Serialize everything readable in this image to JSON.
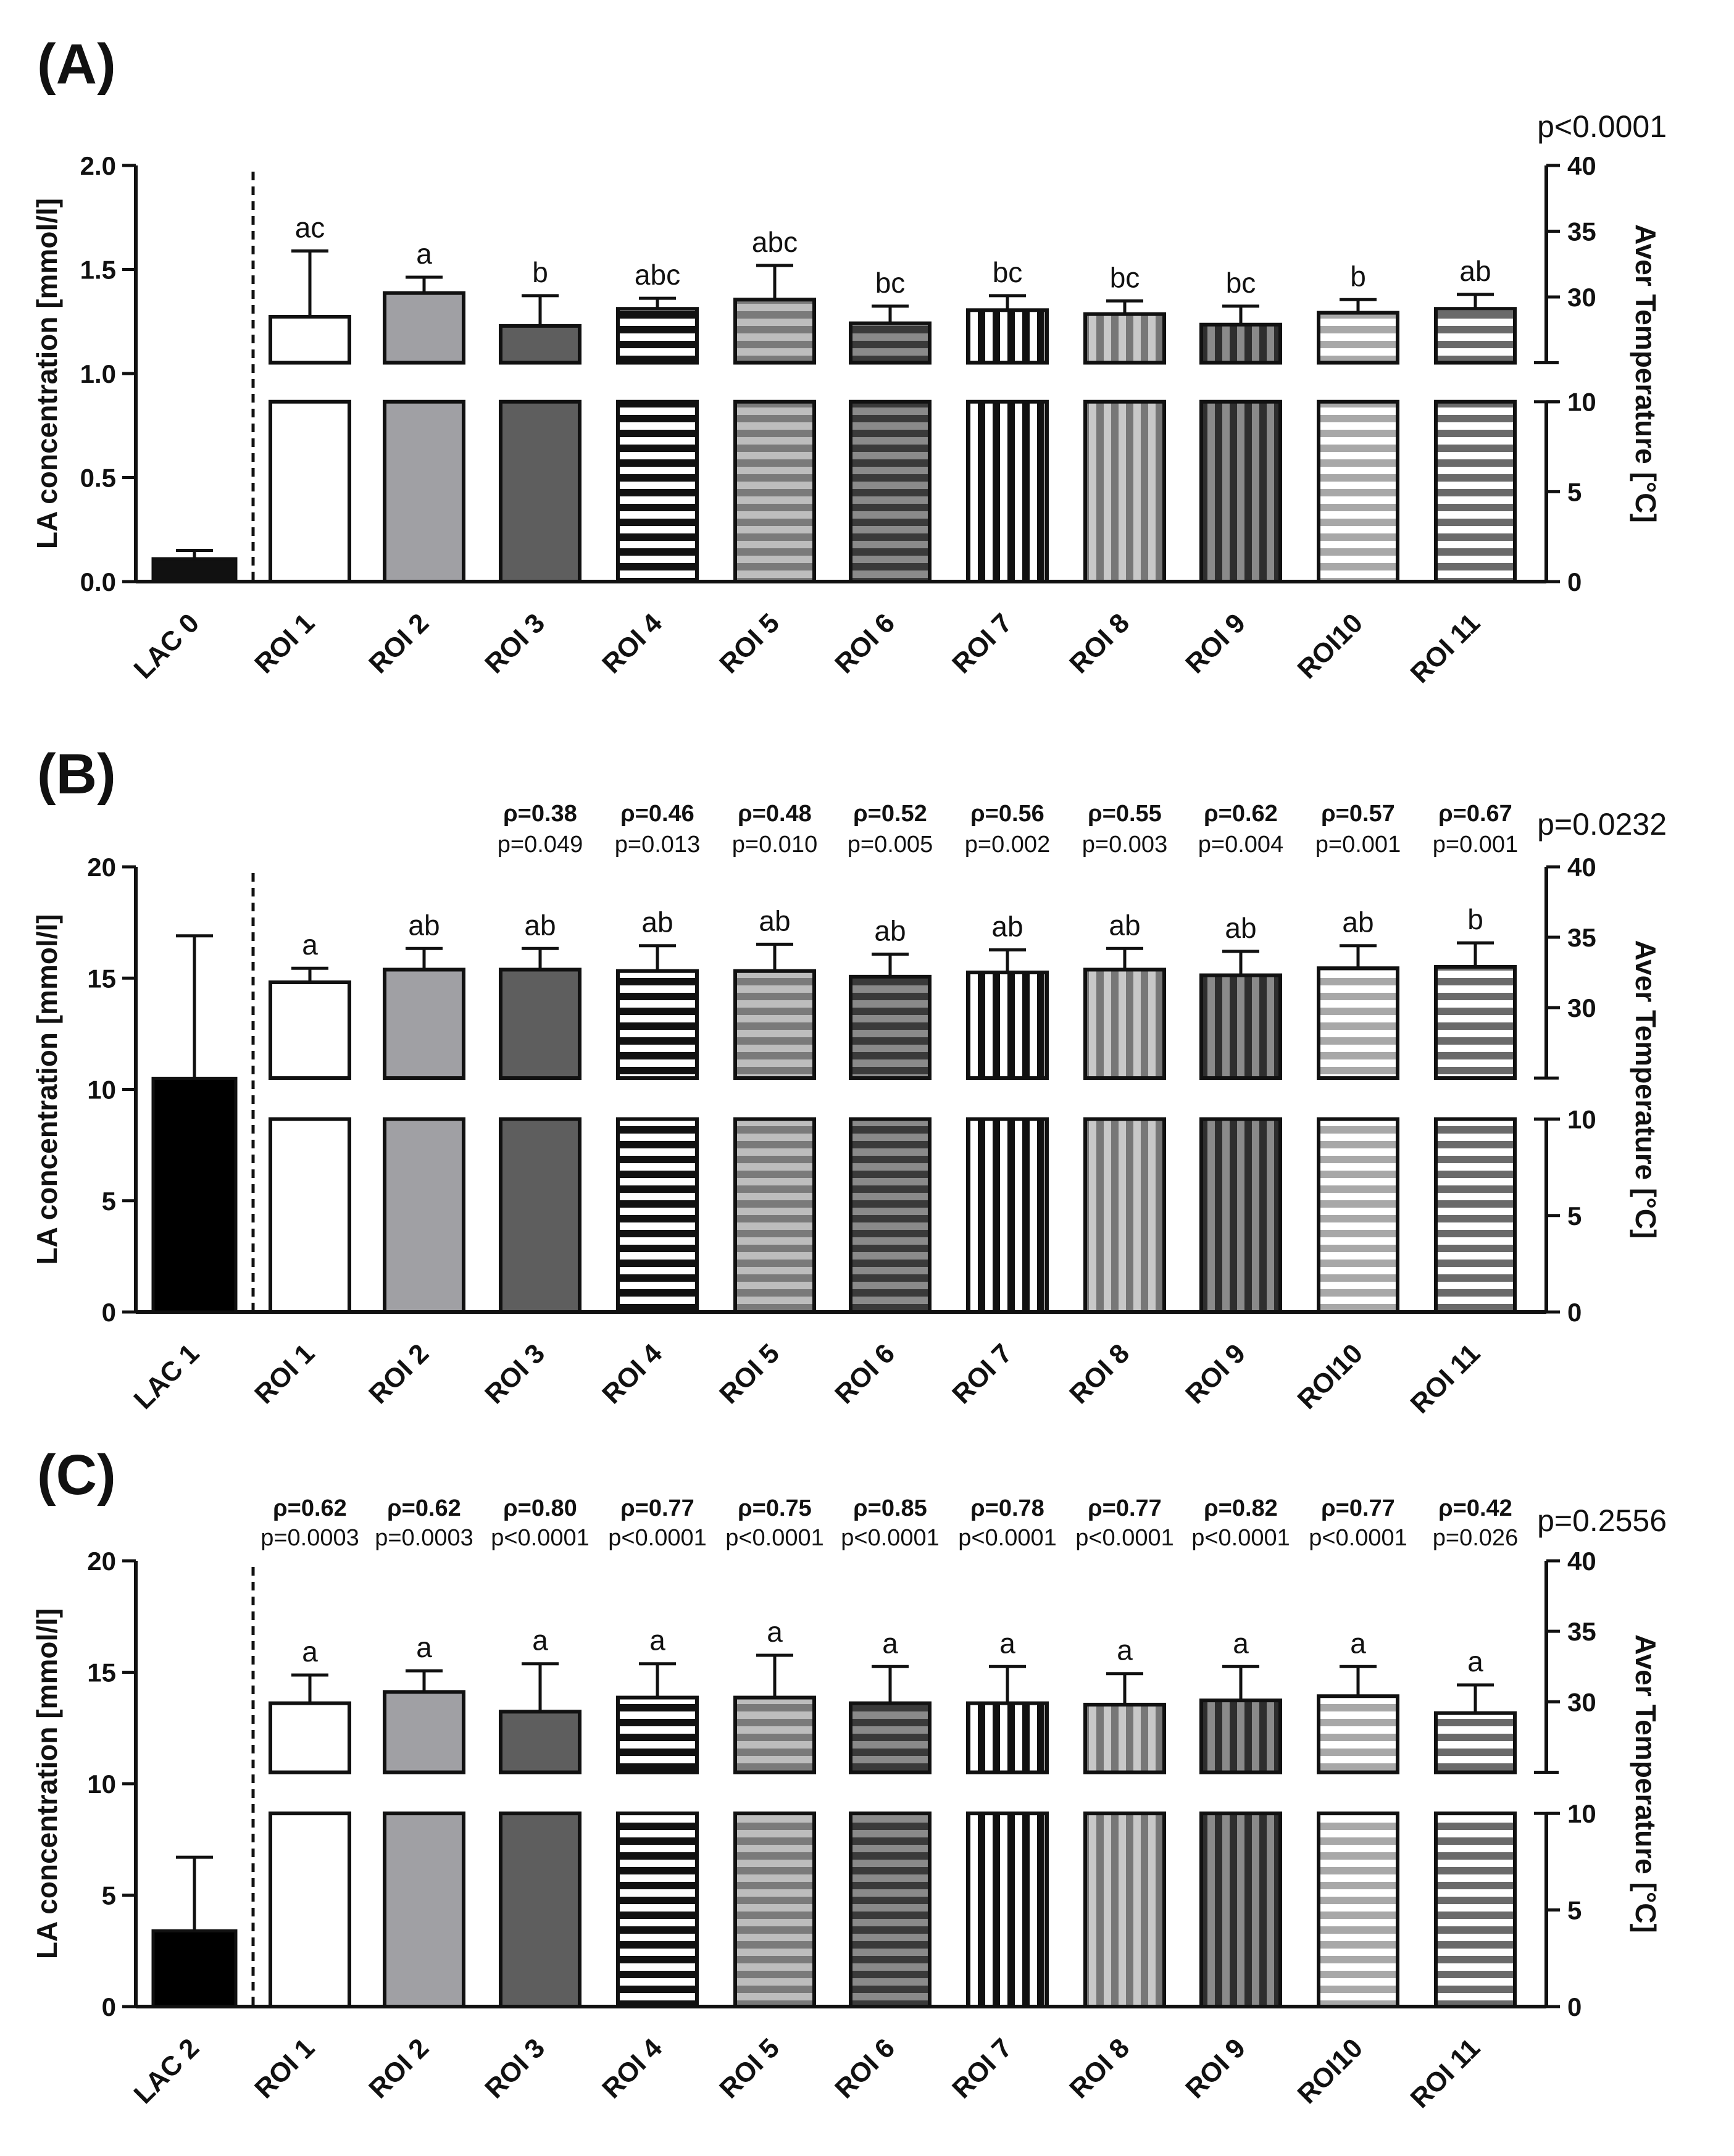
{
  "chart_data": [
    {
      "type": "bar",
      "panel": "(A)",
      "ylabel_left": "LA concentration [mmol/l]",
      "ylabel_right": "Aver Temperature [°C]",
      "left_axis": {
        "ylim": [
          0,
          2.0
        ],
        "ticks": [
          "0.0",
          "0.5",
          "1.0",
          "1.5",
          "2.0"
        ],
        "step": 0.5
      },
      "right_axis": {
        "break": true,
        "lower": [
          0,
          10
        ],
        "upper": [
          25,
          40
        ],
        "ticks": [
          "0",
          "5",
          "10",
          "30",
          "35",
          "40"
        ]
      },
      "p_overall": "p<0.0001",
      "lac": {
        "label": "LAC 0",
        "value": 0.11,
        "error": 0.04
      },
      "categories": [
        "ROI 1",
        "ROI 2",
        "ROI 3",
        "ROI 4",
        "ROI 5",
        "ROI 6",
        "ROI 7",
        "ROI 8",
        "ROI 9",
        "ROI10",
        "ROI 11"
      ],
      "values": [
        28.5,
        30.3,
        27.8,
        29.1,
        29.8,
        28.0,
        29.0,
        28.7,
        27.9,
        28.8,
        29.1
      ],
      "errors": [
        5.0,
        1.2,
        2.3,
        0.8,
        2.6,
        1.3,
        1.1,
        1.0,
        1.4,
        1.0,
        1.1
      ],
      "significance": [
        "ac",
        "a",
        "b",
        "abc",
        "abc",
        "bc",
        "bc",
        "bc",
        "bc",
        "b",
        "ab"
      ],
      "rho": [],
      "pvals": []
    },
    {
      "type": "bar",
      "panel": "(B)",
      "ylabel_left": "LA concentration [mmol/l]",
      "ylabel_right": "Aver Temperature [°C]",
      "left_axis": {
        "ylim": [
          0,
          20
        ],
        "ticks": [
          "0",
          "5",
          "10",
          "15",
          "20"
        ],
        "step": 5
      },
      "right_axis": {
        "break": true,
        "lower": [
          0,
          10
        ],
        "upper": [
          25,
          40
        ],
        "ticks": [
          "0",
          "5",
          "10",
          "30",
          "35",
          "40"
        ]
      },
      "p_overall": "p=0.0232",
      "lac": {
        "label": "LAC 1",
        "value": 10.5,
        "error": 6.4
      },
      "categories": [
        "ROI 1",
        "ROI 2",
        "ROI 3",
        "ROI 4",
        "ROI 5",
        "ROI 6",
        "ROI 7",
        "ROI 8",
        "ROI 9",
        "ROI10",
        "ROI 11"
      ],
      "values": [
        31.8,
        32.7,
        32.7,
        32.6,
        32.6,
        32.2,
        32.5,
        32.7,
        32.3,
        32.8,
        32.9
      ],
      "errors": [
        1.0,
        1.5,
        1.5,
        1.8,
        1.9,
        1.6,
        1.6,
        1.5,
        1.7,
        1.6,
        1.7
      ],
      "significance": [
        "a",
        "ab",
        "ab",
        "ab",
        "ab",
        "ab",
        "ab",
        "ab",
        "ab",
        "ab",
        "b"
      ],
      "rho": [
        "",
        "",
        "ρ=0.38",
        "ρ=0.46",
        "ρ=0.48",
        "ρ=0.52",
        "ρ=0.56",
        "ρ=0.55",
        "ρ=0.62",
        "ρ=0.57",
        "ρ=0.67"
      ],
      "pvals": [
        "",
        "",
        "p=0.049",
        "p=0.013",
        "p=0.010",
        "p=0.005",
        "p=0.002",
        "p=0.003",
        "p=0.004",
        "p=0.001",
        "p=0.001"
      ]
    },
    {
      "type": "bar",
      "panel": "(C)",
      "ylabel_left": "LA concentration [mmol/l]",
      "ylabel_right": "Aver Temperature [°C]",
      "left_axis": {
        "ylim": [
          0,
          20
        ],
        "ticks": [
          "0",
          "5",
          "10",
          "15",
          "20"
        ],
        "step": 5
      },
      "right_axis": {
        "break": true,
        "lower": [
          0,
          10
        ],
        "upper": [
          25,
          40
        ],
        "ticks": [
          "0",
          "5",
          "10",
          "30",
          "35",
          "40"
        ]
      },
      "p_overall": "p=0.2556",
      "lac": {
        "label": "LAC 2",
        "value": 3.4,
        "error": 3.3
      },
      "categories": [
        "ROI 1",
        "ROI 2",
        "ROI 3",
        "ROI 4",
        "ROI 5",
        "ROI 6",
        "ROI 7",
        "ROI 8",
        "ROI 9",
        "ROI10",
        "ROI 11"
      ],
      "values": [
        29.9,
        30.7,
        29.3,
        30.3,
        30.3,
        29.9,
        29.9,
        29.8,
        30.1,
        30.4,
        29.2
      ],
      "errors": [
        2.0,
        1.5,
        3.4,
        2.4,
        3.0,
        2.6,
        2.6,
        2.2,
        2.4,
        2.1,
        2.0
      ],
      "significance": [
        "a",
        "a",
        "a",
        "a",
        "a",
        "a",
        "a",
        "a",
        "a",
        "a",
        "a"
      ],
      "rho": [
        "ρ=0.62",
        "ρ=0.62",
        "ρ=0.80",
        "ρ=0.77",
        "ρ=0.75",
        "ρ=0.85",
        "ρ=0.78",
        "ρ=0.77",
        "ρ=0.82",
        "ρ=0.77",
        "ρ=0.42"
      ],
      "pvals": [
        "p=0.0003",
        "p=0.0003",
        "p<0.0001",
        "p<0.0001",
        "p<0.0001",
        "p<0.0001",
        "p<0.0001",
        "p<0.0001",
        "p<0.0001",
        "p<0.0001",
        "p=0.026"
      ]
    }
  ]
}
